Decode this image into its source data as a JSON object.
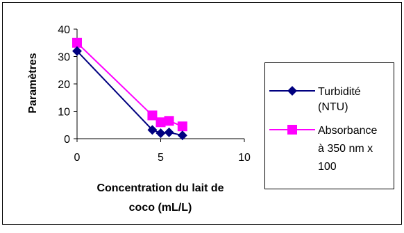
{
  "chart_data": {
    "type": "line",
    "title": "",
    "xlabel_lines": [
      "Concentration du lait de",
      "coco (mL/L)"
    ],
    "ylabel": "Paramètres",
    "xlim": [
      0,
      10
    ],
    "ylim": [
      0,
      40
    ],
    "x_ticks": [
      0,
      5,
      10
    ],
    "y_ticks": [
      0,
      10,
      20,
      30,
      40
    ],
    "grid": false,
    "legend_position": "right",
    "series": [
      {
        "name_lines": [
          "Turbidité",
          "(NTU)"
        ],
        "marker": "diamond",
        "color": "#000080",
        "points": [
          {
            "x": 0,
            "y": 32
          },
          {
            "x": 4.5,
            "y": 3.2
          },
          {
            "x": 5.0,
            "y": 2.0
          },
          {
            "x": 5.5,
            "y": 2.3
          },
          {
            "x": 6.3,
            "y": 1.2
          }
        ]
      },
      {
        "name_lines": [
          "Absorbance",
          "à 350 nm x",
          "100"
        ],
        "marker": "square",
        "color": "#ff00ff",
        "points": [
          {
            "x": 0,
            "y": 35
          },
          {
            "x": 4.5,
            "y": 8.5
          },
          {
            "x": 5.0,
            "y": 6.0
          },
          {
            "x": 5.5,
            "y": 6.5
          },
          {
            "x": 6.3,
            "y": 4.5
          }
        ]
      }
    ]
  }
}
